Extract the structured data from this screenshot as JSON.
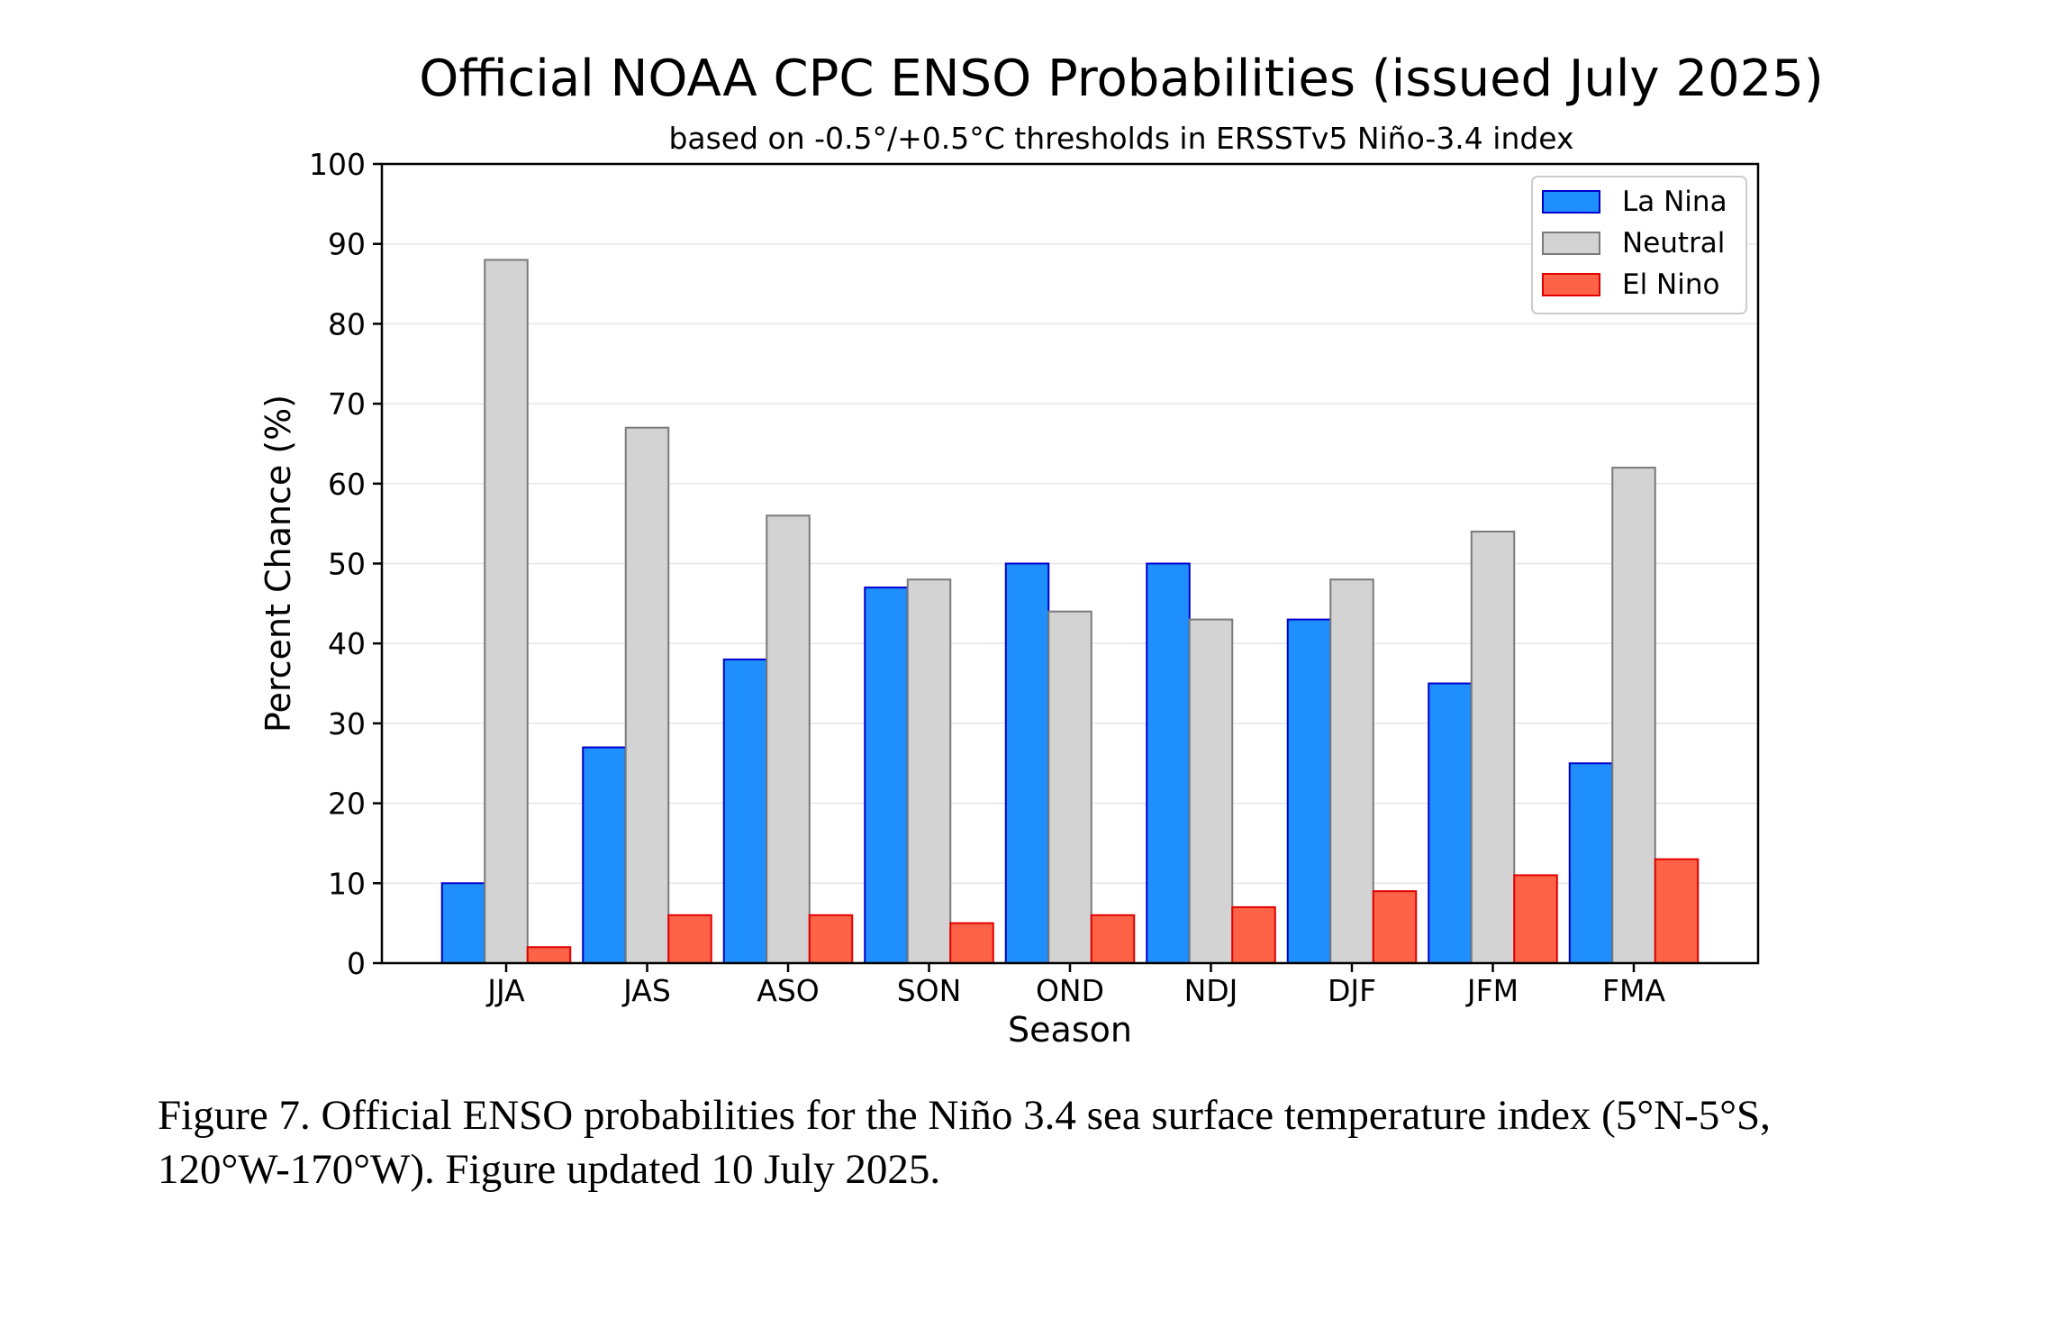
{
  "chart_data": {
    "type": "bar",
    "title": "Official NOAA CPC ENSO Probabilities (issued July 2025)",
    "subtitle": "based on -0.5°/+0.5°C thresholds in ERSSTv5 Niño-3.4 index",
    "xlabel": "Season",
    "ylabel": "Percent Chance (%)",
    "ylim": [
      0,
      100
    ],
    "yticks": [
      "0",
      "10",
      "20",
      "30",
      "40",
      "50",
      "60",
      "70",
      "80",
      "90",
      "100"
    ],
    "grid": "horizontal",
    "legend_position": "top-right",
    "categories": [
      "JJA",
      "JAS",
      "ASO",
      "SON",
      "OND",
      "NDJ",
      "DJF",
      "JFM",
      "FMA"
    ],
    "series": [
      {
        "name": "La Nina",
        "color": "#1f8ffe",
        "edge": "#0000cc",
        "values": [
          10,
          27,
          38,
          47,
          50,
          50,
          43,
          35,
          25
        ]
      },
      {
        "name": "Neutral",
        "color": "#d3d3d3",
        "edge": "#7a7a7a",
        "values": [
          88,
          67,
          56,
          48,
          44,
          43,
          48,
          54,
          62
        ]
      },
      {
        "name": "El Nino",
        "color": "#ff6347",
        "edge": "#e00000",
        "values": [
          2,
          6,
          6,
          5,
          6,
          7,
          9,
          11,
          13
        ]
      }
    ]
  },
  "caption": {
    "line1": "Figure 7. Official ENSO probabilities for the Niño 3.4 sea surface temperature index (5°N-5°S,",
    "line2": "120°W-170°W). Figure updated 10 July 2025."
  }
}
